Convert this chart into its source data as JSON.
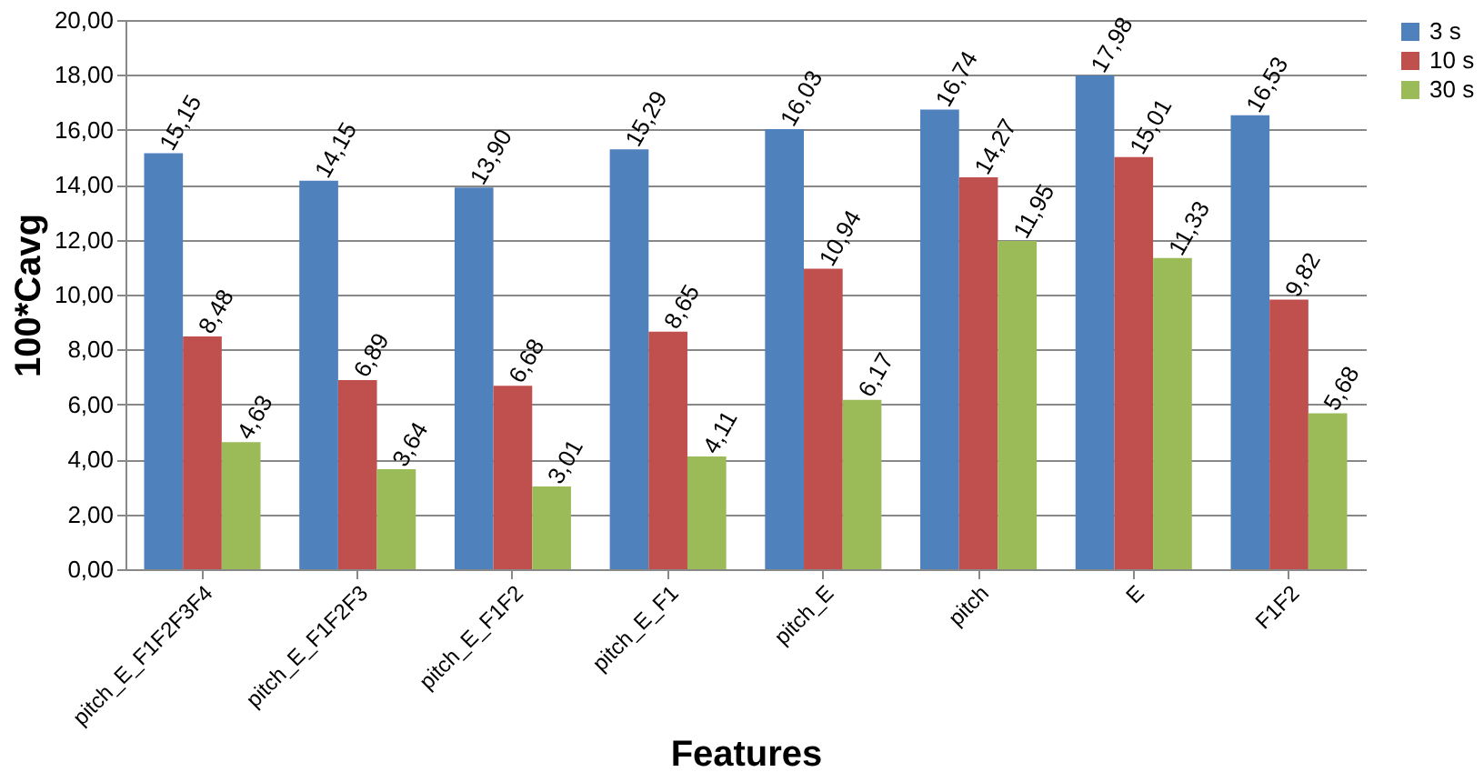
{
  "chart_data": {
    "type": "bar",
    "xlabel": "Features",
    "ylabel": "100*Cavg",
    "categories": [
      "pitch_E_F1F2F3F4",
      "pitch_E_F1F2F3",
      "pitch_E_F1F2",
      "pitch_E_F1",
      "pitch_E",
      "pitch",
      "E",
      "F1F2"
    ],
    "series": [
      {
        "name": "3 s",
        "color": "#4f81bd",
        "values": [
          15.15,
          14.15,
          13.9,
          15.29,
          16.03,
          16.74,
          17.98,
          16.53
        ],
        "value_labels": [
          "15,15",
          "14,15",
          "13,90",
          "15,29",
          "16,03",
          "16,74",
          "17,98",
          "16,53"
        ]
      },
      {
        "name": "10 s",
        "color": "#c0504d",
        "values": [
          8.48,
          6.89,
          6.68,
          8.65,
          10.94,
          14.27,
          15.01,
          9.82
        ],
        "value_labels": [
          "8,48",
          "6,89",
          "6,68",
          "8,65",
          "10,94",
          "14,27",
          "15,01",
          "9,82"
        ]
      },
      {
        "name": "30 s",
        "color": "#9bbb59",
        "values": [
          4.63,
          3.64,
          3.01,
          4.11,
          6.17,
          11.95,
          11.33,
          5.68
        ],
        "value_labels": [
          "4,63",
          "3,64",
          "3,01",
          "4,11",
          "6,17",
          "11,95",
          "11,33",
          "5,68"
        ]
      }
    ],
    "ylim": [
      0,
      20
    ],
    "yticks": [
      {
        "value": 0,
        "label": "0,00"
      },
      {
        "value": 2,
        "label": "2,00"
      },
      {
        "value": 4,
        "label": "4,00"
      },
      {
        "value": 6,
        "label": "6,00"
      },
      {
        "value": 8,
        "label": "8,00"
      },
      {
        "value": 10,
        "label": "10,00"
      },
      {
        "value": 12,
        "label": "12,00"
      },
      {
        "value": 14,
        "label": "14,00"
      },
      {
        "value": 16,
        "label": "16,00"
      },
      {
        "value": 18,
        "label": "18,00"
      },
      {
        "value": 20,
        "label": "20,00"
      }
    ],
    "grid": "y",
    "legend": "right"
  }
}
